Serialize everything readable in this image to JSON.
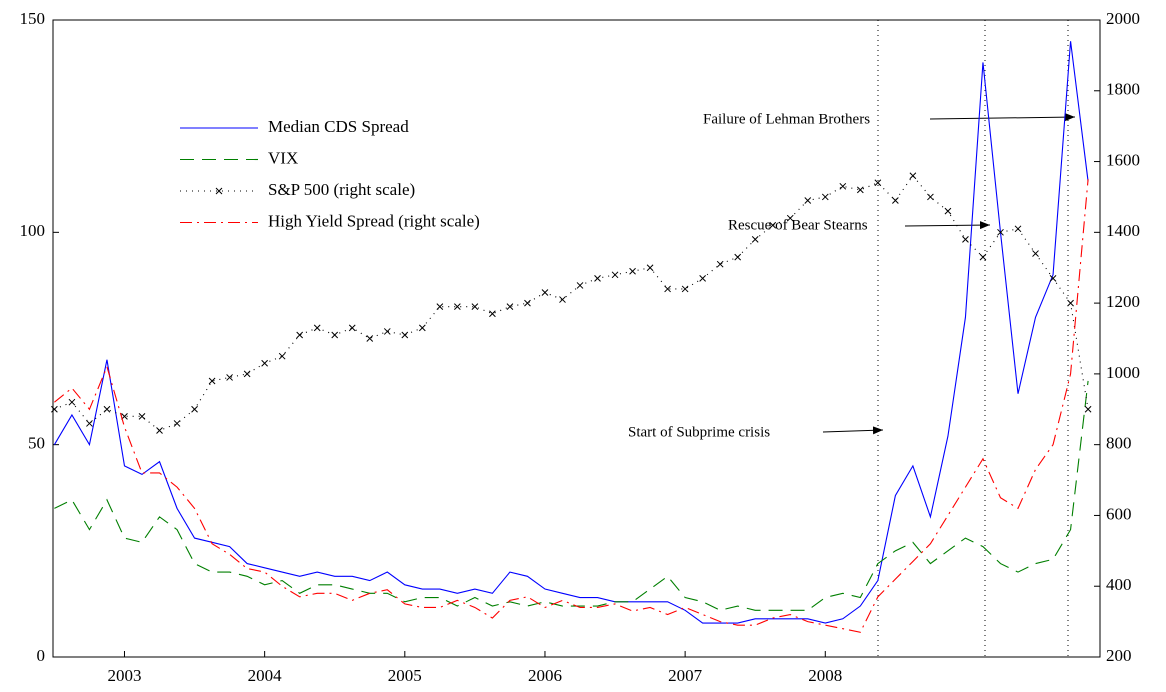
{
  "chart_data": {
    "type": "line",
    "x": [
      2002.5,
      2002.625,
      2002.75,
      2002.875,
      2003,
      2003.125,
      2003.25,
      2003.375,
      2003.5,
      2003.625,
      2003.75,
      2003.875,
      2004,
      2004.125,
      2004.25,
      2004.375,
      2004.5,
      2004.625,
      2004.75,
      2004.875,
      2005,
      2005.125,
      2005.25,
      2005.375,
      2005.5,
      2005.625,
      2005.75,
      2005.875,
      2006,
      2006.125,
      2006.25,
      2006.375,
      2006.5,
      2006.625,
      2006.75,
      2006.875,
      2007,
      2007.125,
      2007.25,
      2007.375,
      2007.5,
      2007.625,
      2007.75,
      2007.875,
      2008,
      2008.125,
      2008.25,
      2008.375,
      2008.5,
      2008.625,
      2008.75,
      2008.875,
      2009,
      2009.125,
      2009.25,
      2009.375,
      2009.5,
      2009.625,
      2009.75,
      2009.875
    ],
    "xlim": [
      2002.49,
      2009.96
    ],
    "xticks": [
      2003,
      2004,
      2005,
      2006,
      2007,
      2008
    ],
    "ylim": [
      0,
      150
    ],
    "yticks": [
      0,
      50,
      100,
      150
    ],
    "y2lim": [
      200,
      2000
    ],
    "y2ticks": [
      200,
      400,
      600,
      800,
      1000,
      1200,
      1400,
      1600,
      1800,
      2000
    ],
    "series": [
      {
        "name": "Median CDS Spread",
        "color": "#0000ff",
        "style": "solid",
        "values": [
          50,
          57,
          50,
          70,
          45,
          43,
          46,
          35,
          28,
          27,
          26,
          22,
          21,
          20,
          19,
          20,
          19,
          19,
          18,
          20,
          17,
          16,
          16,
          15,
          16,
          15,
          20,
          19,
          16,
          15,
          14,
          14,
          13,
          13,
          13,
          13,
          11,
          8,
          8,
          8,
          9,
          9,
          9,
          9,
          8,
          9,
          12,
          18,
          38,
          45,
          33,
          52,
          80,
          140,
          100,
          62,
          80,
          90,
          145,
          112
        ]
      },
      {
        "name": "VIX",
        "color": "#007f00",
        "style": "dashed",
        "values": [
          35,
          37,
          30,
          37,
          28,
          27,
          33,
          30,
          22,
          20,
          20,
          19,
          17,
          18,
          15,
          17,
          17,
          16,
          15,
          15,
          13,
          14,
          14,
          12,
          14,
          12,
          13,
          12,
          13,
          12,
          12,
          12,
          13,
          13,
          16,
          19,
          14,
          13,
          11,
          12,
          11,
          11,
          11,
          11,
          14,
          15,
          14,
          22,
          25,
          27,
          22,
          25,
          28,
          26,
          22,
          20,
          22,
          23,
          30,
          65
        ]
      },
      {
        "name": "S&P 500 (right scale)",
        "color": "#000000",
        "style": "dotted",
        "marker": "x",
        "axis": "y2",
        "values": [
          900,
          920,
          860,
          900,
          880,
          880,
          840,
          860,
          900,
          980,
          990,
          1000,
          1030,
          1050,
          1110,
          1130,
          1110,
          1130,
          1100,
          1120,
          1110,
          1130,
          1190,
          1190,
          1190,
          1170,
          1190,
          1200,
          1230,
          1210,
          1250,
          1270,
          1280,
          1290,
          1300,
          1240,
          1240,
          1270,
          1310,
          1330,
          1380,
          1420,
          1440,
          1490,
          1500,
          1530,
          1520,
          1540,
          1490,
          1560,
          1500,
          1460,
          1380,
          1330,
          1400,
          1410,
          1340,
          1270,
          1200,
          900
        ]
      },
      {
        "name": "High Yield Spread (right scale)",
        "color": "#ff0000",
        "style": "dashdot",
        "axis": "y2",
        "values": [
          920,
          960,
          900,
          1020,
          850,
          720,
          720,
          680,
          620,
          520,
          490,
          450,
          440,
          400,
          370,
          380,
          380,
          360,
          380,
          390,
          350,
          340,
          340,
          360,
          340,
          310,
          360,
          370,
          340,
          360,
          340,
          340,
          350,
          330,
          340,
          320,
          340,
          320,
          300,
          290,
          290,
          310,
          320,
          300,
          290,
          280,
          270,
          370,
          420,
          470,
          520,
          600,
          680,
          760,
          650,
          620,
          730,
          800,
          1000,
          1550
        ]
      }
    ],
    "annotations": [
      "Failure of Lehman Brothers",
      "Rescue of Bear Stearns",
      "Start of Subprime crisis"
    ]
  }
}
